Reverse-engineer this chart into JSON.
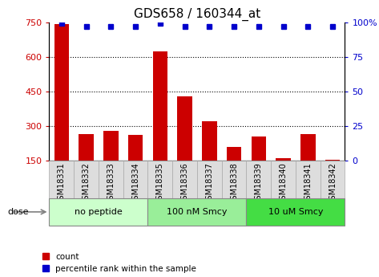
{
  "title": "GDS658 / 160344_at",
  "samples": [
    "GSM18331",
    "GSM18332",
    "GSM18333",
    "GSM18334",
    "GSM18335",
    "GSM18336",
    "GSM18337",
    "GSM18338",
    "GSM18339",
    "GSM18340",
    "GSM18341",
    "GSM18342"
  ],
  "counts": [
    740,
    265,
    280,
    260,
    625,
    430,
    320,
    210,
    255,
    160,
    265,
    155
  ],
  "percentiles": [
    99,
    97,
    97,
    97,
    99,
    97,
    97,
    97,
    97,
    97,
    97,
    97
  ],
  "groups": [
    {
      "label": "no peptide",
      "start": 0,
      "end": 4,
      "color": "#ccffcc"
    },
    {
      "label": "100 nM Smcy",
      "start": 4,
      "end": 8,
      "color": "#99ee99"
    },
    {
      "label": "10 uM Smcy",
      "start": 8,
      "end": 12,
      "color": "#44dd44"
    }
  ],
  "ylim_left": [
    150,
    750
  ],
  "ylim_right": [
    0,
    100
  ],
  "yticks_left": [
    150,
    300,
    450,
    600,
    750
  ],
  "yticks_right": [
    0,
    25,
    50,
    75,
    100
  ],
  "bar_color": "#cc0000",
  "dot_color": "#0000cc",
  "grid_color": "#000000",
  "title_fontsize": 11,
  "tick_label_fontsize": 7,
  "axis_label_color_left": "#cc0000",
  "axis_label_color_right": "#0000cc",
  "background_color": "#ffffff",
  "plot_bg_color": "#ffffff",
  "dose_label": "dose",
  "legend_count_label": "count",
  "legend_percentile_label": "percentile rank within the sample",
  "sample_box_color": "#dddddd",
  "sample_box_edge_color": "#aaaaaa"
}
